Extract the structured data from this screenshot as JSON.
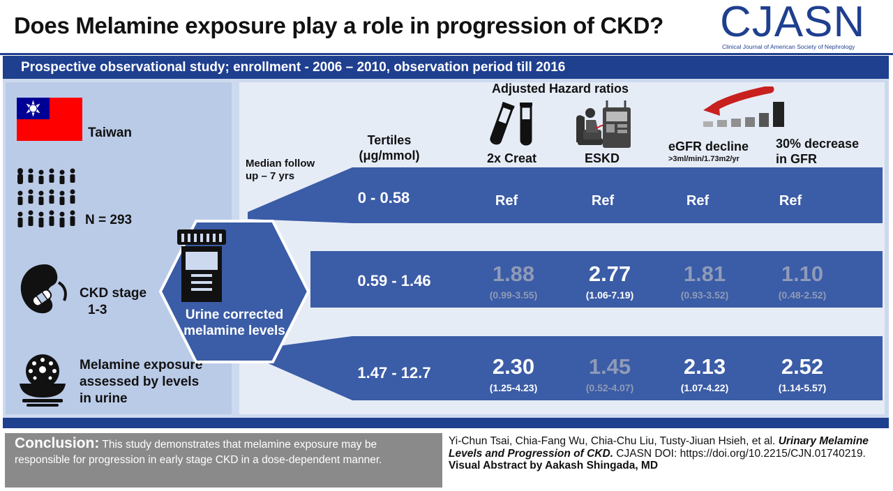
{
  "title": "Does Melamine exposure play a role in progression of CKD?",
  "logo": {
    "name": "CJASN",
    "subtitle": "Clinical Journal of American Society of Nephrology"
  },
  "banner": "Prospective observational study; enrollment - 2006 – 2010, observation period till 2016",
  "left": {
    "country": "Taiwan",
    "n": "N = 293",
    "ckd_line1": "CKD stage",
    "ckd_line2": "1-3",
    "exposure_line1": "Melamine exposure",
    "exposure_line2": "assessed by levels",
    "exposure_line3": "in urine"
  },
  "hexagon": {
    "line1": "Urine corrected",
    "line2": "melamine levels"
  },
  "median_line1": "Median follow",
  "median_line2": "up – 7 yrs",
  "header": {
    "adjusted": "Adjusted Hazard ratios",
    "tertiles_line1": "Tertiles",
    "tertiles_line2": "(μg/mmol)",
    "creat": "2x Creat",
    "eskd": "ESKD",
    "egfr": "eGFR decline",
    "egfr_sub": ">3ml/min/1.73m2/yr",
    "gfr_line1": "30% decrease",
    "gfr_line2": "in GFR"
  },
  "rows": [
    {
      "tertile": "0 - 0.58",
      "c1": "Ref",
      "c2": "Ref",
      "c3": "Ref",
      "c4": "Ref"
    },
    {
      "tertile": "0.59 - 1.46",
      "c1": "1.88",
      "c1ci": "(0.99-3.55)",
      "c2": "2.77",
      "c2ci": "(1.06-7.19)",
      "c3": "1.81",
      "c3ci": "(0.93-3.52)",
      "c4": "1.10",
      "c4ci": "(0.48-2.52)"
    },
    {
      "tertile": "1.47 - 12.7",
      "c1": "2.30",
      "c1ci": "(1.25-4.23)",
      "c2": "1.45",
      "c2ci": "(0.52-4.07)",
      "c3": "2.13",
      "c3ci": "(1.07-4.22)",
      "c4": "2.52",
      "c4ci": "(1.14-5.57)"
    }
  ],
  "conclusion": {
    "label": "Conclusion:",
    "text": "This study demonstrates that melamine exposure may be responsible for progression in early stage CKD in a dose-dependent manner."
  },
  "citation": {
    "authors": "Yi-Chun Tsai, Chia-Fang Wu, Chia-Chu Liu, Tusty-Jiuan Hsieh, et al. ",
    "article": "Urinary Melamine Levels and Progression of CKD.",
    "doi": " CJASN DOI: https://doi.org/10.2215/CJN.01740219. ",
    "credit": "Visual Abstract by Aakash Shingada, MD"
  },
  "colors": {
    "navy": "#1f3f8f",
    "row": "#3b5ca6",
    "flag_red": "#fe0000",
    "flag_blue": "#000095",
    "arrow_red": "#c8201e"
  }
}
